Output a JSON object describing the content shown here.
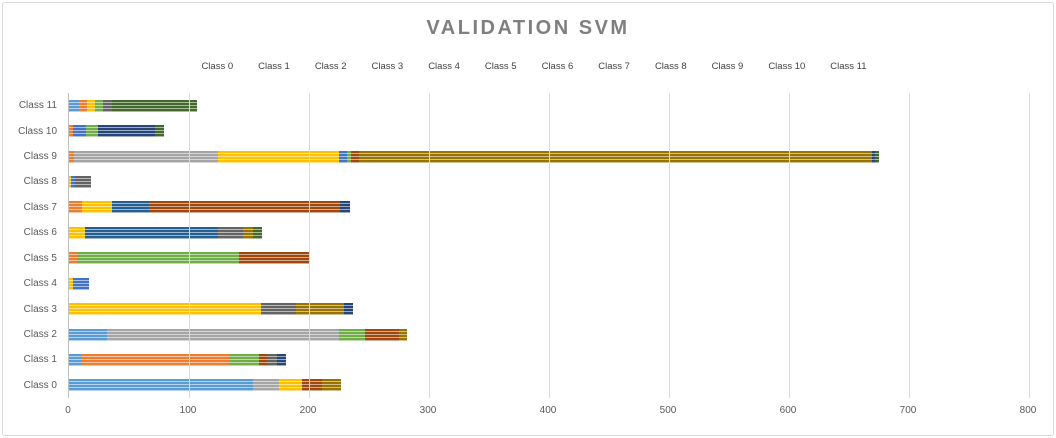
{
  "chart_data": {
    "type": "bar",
    "orientation": "horizontal",
    "stacked": true,
    "title": "VALIDATION SVM",
    "legend_position": "top",
    "grid": "vertical",
    "xlim": [
      0,
      800
    ],
    "xticks": [
      0,
      100,
      200,
      300,
      400,
      500,
      600,
      700,
      800
    ],
    "categories_top_to_bottom": [
      "Class 11",
      "Class 10",
      "Class 9",
      "Class 8",
      "Class 7",
      "Class 6",
      "Class 5",
      "Class 4",
      "Class 3",
      "Class 2",
      "Class 1",
      "Class 0"
    ],
    "series": [
      {
        "name": "Class 0",
        "color": "#5B9BD5",
        "values": [
          8,
          0,
          0,
          0,
          0,
          0,
          0,
          0,
          0,
          32,
          11,
          153
        ]
      },
      {
        "name": "Class 1",
        "color": "#ED7D31",
        "values": [
          7,
          3,
          4,
          0,
          11,
          0,
          7,
          0,
          0,
          0,
          122,
          0
        ]
      },
      {
        "name": "Class 2",
        "color": "#A5A5A5",
        "values": [
          0,
          0,
          120,
          0,
          0,
          0,
          0,
          0,
          0,
          193,
          0,
          22
        ]
      },
      {
        "name": "Class 3",
        "color": "#FFC000",
        "values": [
          7,
          0,
          101,
          2,
          25,
          13,
          0,
          3,
          160,
          0,
          0,
          19
        ]
      },
      {
        "name": "Class 4",
        "color": "#4472C4",
        "values": [
          0,
          11,
          7,
          3,
          0,
          0,
          0,
          14,
          0,
          0,
          0,
          0
        ]
      },
      {
        "name": "Class 5",
        "color": "#70AD47",
        "values": [
          6,
          10,
          3,
          0,
          0,
          0,
          135,
          0,
          0,
          22,
          25,
          0
        ]
      },
      {
        "name": "Class 6",
        "color": "#255E91",
        "values": [
          0,
          0,
          0,
          0,
          31,
          111,
          0,
          0,
          0,
          0,
          0,
          0
        ]
      },
      {
        "name": "Class 7",
        "color": "#9E480E",
        "values": [
          0,
          0,
          7,
          0,
          159,
          0,
          58,
          0,
          0,
          28,
          7,
          17
        ]
      },
      {
        "name": "Class 8",
        "color": "#636363",
        "values": [
          8,
          0,
          0,
          13,
          0,
          21,
          0,
          0,
          29,
          0,
          8,
          0
        ]
      },
      {
        "name": "Class 9",
        "color": "#997300",
        "values": [
          0,
          0,
          427,
          0,
          0,
          8,
          0,
          0,
          40,
          7,
          0,
          16
        ]
      },
      {
        "name": "Class 10",
        "color": "#264478",
        "values": [
          0,
          48,
          3,
          0,
          8,
          0,
          0,
          0,
          8,
          0,
          8,
          0
        ]
      },
      {
        "name": "Class 11",
        "color": "#43682B",
        "values": [
          71,
          7,
          3,
          0,
          0,
          8,
          0,
          0,
          0,
          0,
          0,
          0
        ]
      }
    ]
  }
}
